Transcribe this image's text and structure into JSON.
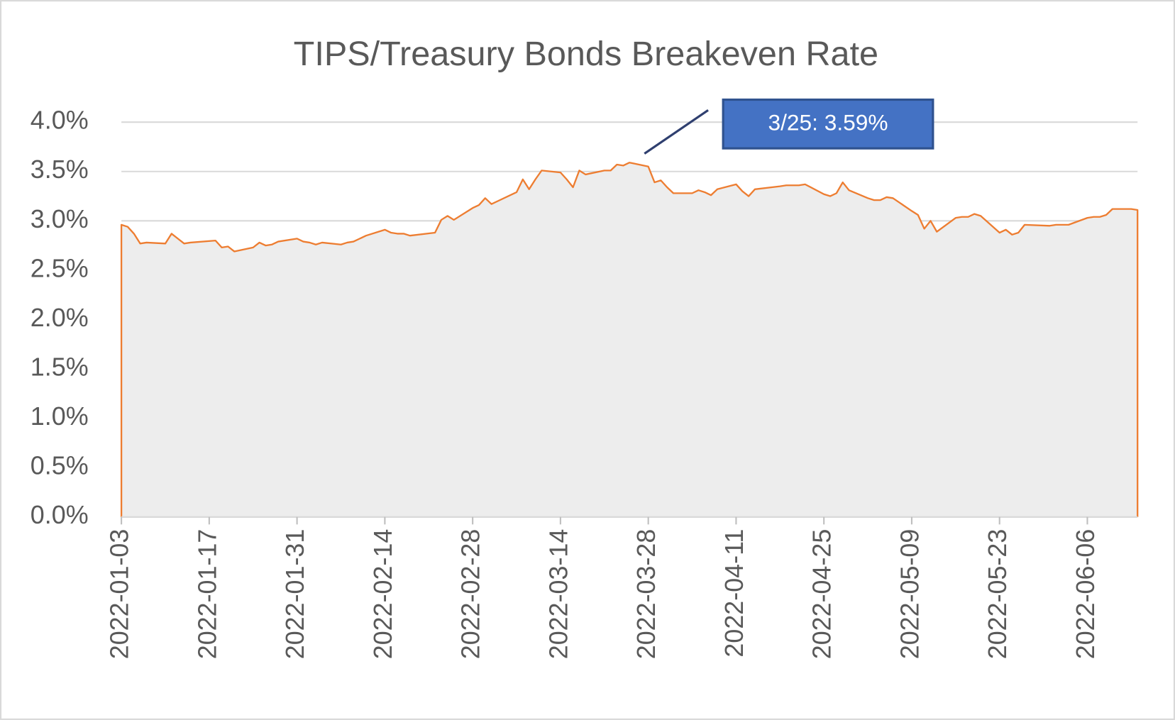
{
  "chart_data": {
    "type": "area",
    "title": "TIPS/Treasury Bonds Breakeven Rate",
    "annotation": "3/25: 3.59%",
    "x": [
      "2022-01-03",
      "2022-01-04",
      "2022-01-05",
      "2022-01-06",
      "2022-01-07",
      "2022-01-10",
      "2022-01-11",
      "2022-01-12",
      "2022-01-13",
      "2022-01-14",
      "2022-01-18",
      "2022-01-19",
      "2022-01-20",
      "2022-01-21",
      "2022-01-24",
      "2022-01-25",
      "2022-01-26",
      "2022-01-27",
      "2022-01-28",
      "2022-01-31",
      "2022-02-01",
      "2022-02-02",
      "2022-02-03",
      "2022-02-04",
      "2022-02-07",
      "2022-02-08",
      "2022-02-09",
      "2022-02-10",
      "2022-02-11",
      "2022-02-14",
      "2022-02-15",
      "2022-02-16",
      "2022-02-17",
      "2022-02-18",
      "2022-02-22",
      "2022-02-23",
      "2022-02-24",
      "2022-02-25",
      "2022-02-28",
      "2022-03-01",
      "2022-03-02",
      "2022-03-03",
      "2022-03-04",
      "2022-03-07",
      "2022-03-08",
      "2022-03-09",
      "2022-03-10",
      "2022-03-11",
      "2022-03-14",
      "2022-03-15",
      "2022-03-16",
      "2022-03-17",
      "2022-03-18",
      "2022-03-21",
      "2022-03-22",
      "2022-03-23",
      "2022-03-24",
      "2022-03-25",
      "2022-03-28",
      "2022-03-29",
      "2022-03-30",
      "2022-03-31",
      "2022-04-01",
      "2022-04-04",
      "2022-04-05",
      "2022-04-06",
      "2022-04-07",
      "2022-04-08",
      "2022-04-11",
      "2022-04-12",
      "2022-04-13",
      "2022-04-14",
      "2022-04-18",
      "2022-04-19",
      "2022-04-20",
      "2022-04-21",
      "2022-04-22",
      "2022-04-25",
      "2022-04-26",
      "2022-04-27",
      "2022-04-28",
      "2022-04-29",
      "2022-05-02",
      "2022-05-03",
      "2022-05-04",
      "2022-05-05",
      "2022-05-06",
      "2022-05-09",
      "2022-05-10",
      "2022-05-11",
      "2022-05-12",
      "2022-05-13",
      "2022-05-16",
      "2022-05-17",
      "2022-05-18",
      "2022-05-19",
      "2022-05-20",
      "2022-05-23",
      "2022-05-24",
      "2022-05-25",
      "2022-05-26",
      "2022-05-27",
      "2022-05-31",
      "2022-06-01",
      "2022-06-02",
      "2022-06-03",
      "2022-06-06",
      "2022-06-07",
      "2022-06-08",
      "2022-06-09",
      "2022-06-10",
      "2022-06-13",
      "2022-06-14"
    ],
    "series": [
      {
        "color": "#ed7d31",
        "fill": "#ededed",
        "values": [
          2.96,
          2.94,
          2.87,
          2.77,
          2.78,
          2.77,
          2.87,
          2.82,
          2.77,
          2.78,
          2.8,
          2.73,
          2.74,
          2.69,
          2.73,
          2.78,
          2.75,
          2.76,
          2.79,
          2.82,
          2.79,
          2.78,
          2.76,
          2.78,
          2.76,
          2.78,
          2.79,
          2.82,
          2.85,
          2.91,
          2.88,
          2.87,
          2.87,
          2.85,
          2.88,
          3.01,
          3.05,
          3.01,
          3.13,
          3.16,
          3.23,
          3.17,
          3.2,
          3.29,
          3.42,
          3.32,
          3.42,
          3.51,
          3.49,
          3.42,
          3.34,
          3.51,
          3.47,
          3.51,
          3.51,
          3.57,
          3.56,
          3.59,
          3.55,
          3.39,
          3.41,
          3.34,
          3.28,
          3.28,
          3.31,
          3.29,
          3.26,
          3.32,
          3.37,
          3.3,
          3.25,
          3.32,
          3.35,
          3.36,
          3.36,
          3.36,
          3.37,
          3.27,
          3.25,
          3.28,
          3.39,
          3.31,
          3.23,
          3.21,
          3.21,
          3.24,
          3.23,
          3.1,
          3.06,
          2.92,
          3.0,
          2.89,
          3.03,
          3.04,
          3.04,
          3.07,
          3.05,
          2.88,
          2.91,
          2.86,
          2.88,
          2.96,
          2.95,
          2.96,
          2.96,
          2.96,
          3.03,
          3.04,
          3.04,
          3.06,
          3.12,
          3.12,
          3.11
        ]
      }
    ],
    "xlim": [
      "2022-01-03",
      "2022-06-14"
    ],
    "xticks": [
      "2022-01-03",
      "2022-01-17",
      "2022-01-31",
      "2022-02-14",
      "2022-02-28",
      "2022-03-14",
      "2022-03-28",
      "2022-04-11",
      "2022-04-25",
      "2022-05-09",
      "2022-05-23",
      "2022-06-06"
    ],
    "ylim": [
      0,
      4
    ],
    "yticks": [
      {
        "value": 0,
        "label": "0.0%"
      },
      {
        "value": 0.5,
        "label": "0.5%"
      },
      {
        "value": 1,
        "label": "1.0%"
      },
      {
        "value": 1.5,
        "label": "1.5%"
      },
      {
        "value": 2,
        "label": "2.0%"
      },
      {
        "value": 2.5,
        "label": "2.5%"
      },
      {
        "value": 3,
        "label": "3.0%"
      },
      {
        "value": 3.5,
        "label": "3.5%"
      },
      {
        "value": 4,
        "label": "4.0%"
      }
    ],
    "grid": true
  }
}
